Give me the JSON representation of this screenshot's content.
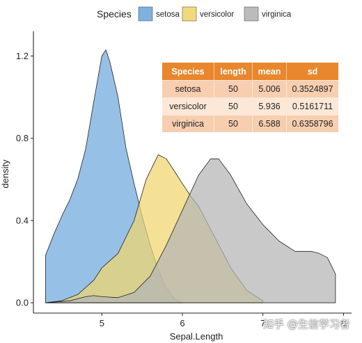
{
  "chart_data": {
    "type": "area",
    "title": "",
    "xlabel": "Sepal.Length",
    "ylabel": "density",
    "xlim": [
      4.15,
      8.1
    ],
    "ylim": [
      -0.05,
      1.32
    ],
    "x_ticks": [
      5,
      6,
      7,
      8
    ],
    "y_ticks": [
      0.0,
      0.4,
      0.8,
      1.2
    ],
    "x_tick_labels": [
      "5",
      "6",
      "7",
      "8"
    ],
    "y_tick_labels": [
      "0.0",
      "0.4",
      "0.8",
      "1.2"
    ],
    "grid": false,
    "legend": {
      "title": "Species",
      "placement": "top",
      "entries": [
        "setosa",
        "versicolor",
        "virginica"
      ]
    },
    "series": [
      {
        "name": "setosa",
        "color": "#6FA8DC",
        "points": [
          [
            4.3,
            0.23
          ],
          [
            4.4,
            0.33
          ],
          [
            4.5,
            0.42
          ],
          [
            4.6,
            0.5
          ],
          [
            4.7,
            0.6
          ],
          [
            4.8,
            0.75
          ],
          [
            4.9,
            0.98
          ],
          [
            5.0,
            1.2
          ],
          [
            5.05,
            1.23
          ],
          [
            5.1,
            1.17
          ],
          [
            5.2,
            1.0
          ],
          [
            5.3,
            0.75
          ],
          [
            5.4,
            0.58
          ],
          [
            5.5,
            0.42
          ],
          [
            5.6,
            0.28
          ],
          [
            5.7,
            0.16
          ],
          [
            5.8,
            0.07
          ],
          [
            5.9,
            0.02
          ],
          [
            6.0,
            0.0
          ]
        ]
      },
      {
        "name": "versicolor",
        "color": "#F0D66E",
        "points": [
          [
            4.3,
            0.0
          ],
          [
            4.5,
            0.01
          ],
          [
            4.7,
            0.04
          ],
          [
            4.9,
            0.11
          ],
          [
            5.0,
            0.17
          ],
          [
            5.2,
            0.24
          ],
          [
            5.4,
            0.4
          ],
          [
            5.55,
            0.6
          ],
          [
            5.7,
            0.72
          ],
          [
            5.8,
            0.7
          ],
          [
            5.9,
            0.64
          ],
          [
            6.0,
            0.58
          ],
          [
            6.1,
            0.52
          ],
          [
            6.2,
            0.47
          ],
          [
            6.4,
            0.32
          ],
          [
            6.6,
            0.17
          ],
          [
            6.8,
            0.06
          ],
          [
            7.0,
            0.01
          ]
        ]
      },
      {
        "name": "virginica",
        "color": "#B4B4B4",
        "points": [
          [
            4.3,
            0.0
          ],
          [
            4.6,
            0.01
          ],
          [
            4.8,
            0.03
          ],
          [
            4.9,
            0.035
          ],
          [
            5.0,
            0.03
          ],
          [
            5.2,
            0.025
          ],
          [
            5.4,
            0.05
          ],
          [
            5.6,
            0.13
          ],
          [
            5.8,
            0.28
          ],
          [
            6.0,
            0.45
          ],
          [
            6.2,
            0.62
          ],
          [
            6.35,
            0.7
          ],
          [
            6.45,
            0.7
          ],
          [
            6.6,
            0.62
          ],
          [
            6.8,
            0.48
          ],
          [
            7.0,
            0.38
          ],
          [
            7.2,
            0.3
          ],
          [
            7.4,
            0.25
          ],
          [
            7.6,
            0.25
          ],
          [
            7.7,
            0.24
          ],
          [
            7.8,
            0.22
          ],
          [
            7.9,
            0.14
          ]
        ]
      }
    ],
    "table": {
      "columns": [
        "Species",
        "length",
        "mean",
        "sd"
      ],
      "rows": [
        [
          "setosa",
          "50",
          "5.006",
          "0.3524897"
        ],
        [
          "versicolor",
          "50",
          "5.936",
          "0.5161711"
        ],
        [
          "virginica",
          "50",
          "6.588",
          "0.6358796"
        ]
      ]
    }
  },
  "watermark": "知乎 @生信学习者"
}
